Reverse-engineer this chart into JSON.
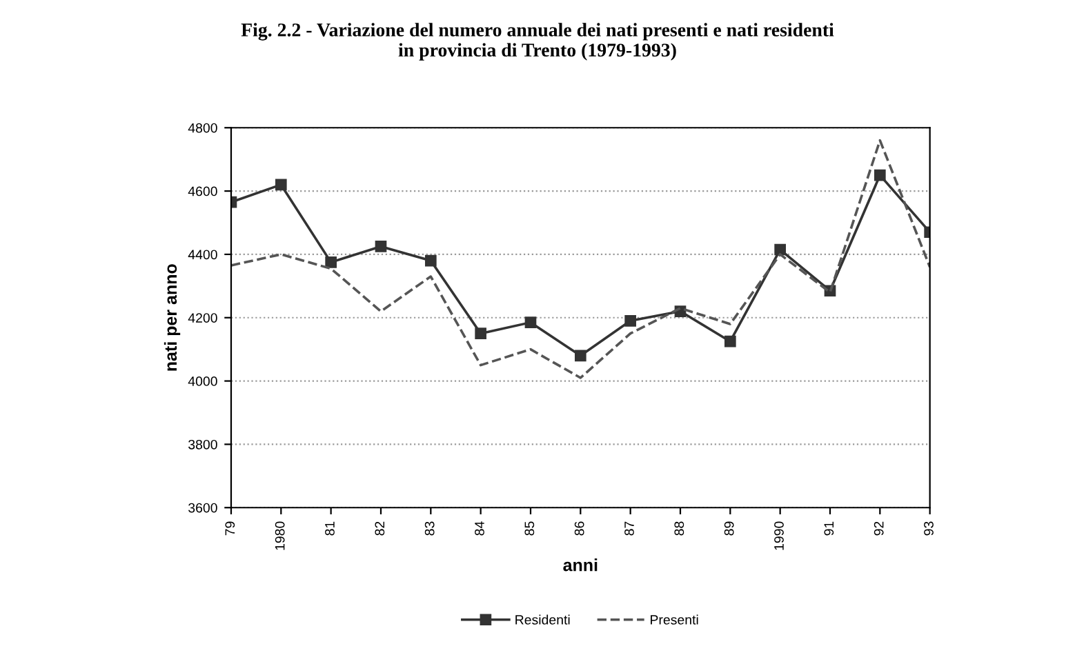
{
  "chart_data": {
    "type": "line",
    "title": "Fig. 2.2 - Variazione del numero annuale dei nati presenti e nati residenti\nin provincia di Trento (1979-1993)",
    "xlabel": "anni",
    "ylabel": "nati per anno",
    "categories": [
      "79",
      "1980",
      "81",
      "82",
      "83",
      "84",
      "85",
      "86",
      "87",
      "88",
      "89",
      "1990",
      "91",
      "92",
      "93"
    ],
    "series": [
      {
        "name": "Residenti",
        "color": "#333333",
        "marker": "square",
        "line_style": "solid",
        "values": [
          4565,
          4620,
          4375,
          4425,
          4380,
          4150,
          4185,
          4080,
          4190,
          4220,
          4125,
          4415,
          4285,
          4650,
          4470
        ]
      },
      {
        "name": "Presenti",
        "color": "#555555",
        "marker": "none",
        "line_style": "dashed",
        "values": [
          4365,
          4400,
          4355,
          4220,
          4330,
          4050,
          4100,
          4010,
          4150,
          4230,
          4180,
          4400,
          4280,
          4760,
          4360
        ]
      }
    ],
    "ylim": [
      3600,
      4800
    ],
    "yticks": [
      3600,
      3800,
      4000,
      4200,
      4400,
      4600,
      4800
    ],
    "grid": "y",
    "legend": "bottom"
  }
}
